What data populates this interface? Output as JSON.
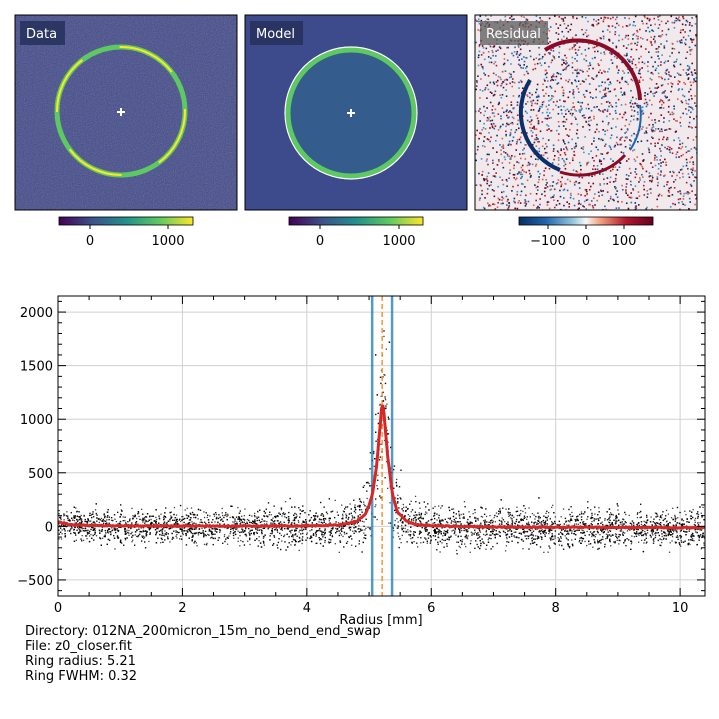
{
  "panels": [
    {
      "label": "Data",
      "cbar_ticks": [
        "0",
        "1000"
      ],
      "colormap": "viridis"
    },
    {
      "label": "Model",
      "cbar_ticks": [
        "0",
        "1000"
      ],
      "colormap": "viridis"
    },
    {
      "label": "Residual",
      "cbar_ticks": [
        "−100",
        "0",
        "100"
      ],
      "colormap": "RdBu_r"
    }
  ],
  "info": {
    "directory": "Directory: 012NA_200micron_15m_no_bend_end_swap",
    "file": "File: z0_closer.fit",
    "radius": "Ring radius: 5.21",
    "fwhm": "Ring FWHM: 0.32"
  },
  "chart_data": {
    "type": "scatter",
    "xlabel": "Radius [mm]",
    "ylabel": "",
    "xlim": [
      0,
      10.4
    ],
    "ylim": [
      -650,
      2150
    ],
    "xticks": [
      0,
      2,
      4,
      6,
      8,
      10
    ],
    "yticks": [
      -500,
      0,
      500,
      1000,
      1500,
      2000
    ],
    "grid": true,
    "ring_radius": 5.21,
    "ring_fwhm": 0.32,
    "fwhm_bounds": [
      5.05,
      5.37
    ],
    "colors": {
      "points": "#000000",
      "profile": "#d62728",
      "bounds": "#1f77b4",
      "center": "#ff7f0e"
    },
    "profile": [
      [
        0.0,
        40
      ],
      [
        0.2,
        15
      ],
      [
        0.5,
        8
      ],
      [
        1.0,
        5
      ],
      [
        2.0,
        3
      ],
      [
        3.0,
        2
      ],
      [
        4.0,
        5
      ],
      [
        4.5,
        12
      ],
      [
        4.8,
        45
      ],
      [
        4.95,
        120
      ],
      [
        5.05,
        280
      ],
      [
        5.12,
        560
      ],
      [
        5.18,
        950
      ],
      [
        5.21,
        1170
      ],
      [
        5.24,
        1050
      ],
      [
        5.3,
        650
      ],
      [
        5.37,
        320
      ],
      [
        5.45,
        140
      ],
      [
        5.6,
        45
      ],
      [
        5.8,
        12
      ],
      [
        6.2,
        2
      ],
      [
        7.0,
        -5
      ],
      [
        8.0,
        -8
      ],
      [
        9.0,
        -10
      ],
      [
        10.0,
        -12
      ],
      [
        10.4,
        -12
      ]
    ],
    "scatter_envelope": [
      [
        0.0,
        150
      ],
      [
        1.0,
        160
      ],
      [
        2.0,
        175
      ],
      [
        3.0,
        185
      ],
      [
        4.0,
        195
      ],
      [
        4.8,
        220
      ],
      [
        5.05,
        500
      ],
      [
        5.21,
        680
      ],
      [
        5.37,
        500
      ],
      [
        5.6,
        230
      ],
      [
        6.0,
        200
      ],
      [
        7.0,
        200
      ],
      [
        8.0,
        200
      ],
      [
        9.0,
        195
      ],
      [
        10.4,
        190
      ]
    ],
    "peak_scatter_max": 1850
  }
}
